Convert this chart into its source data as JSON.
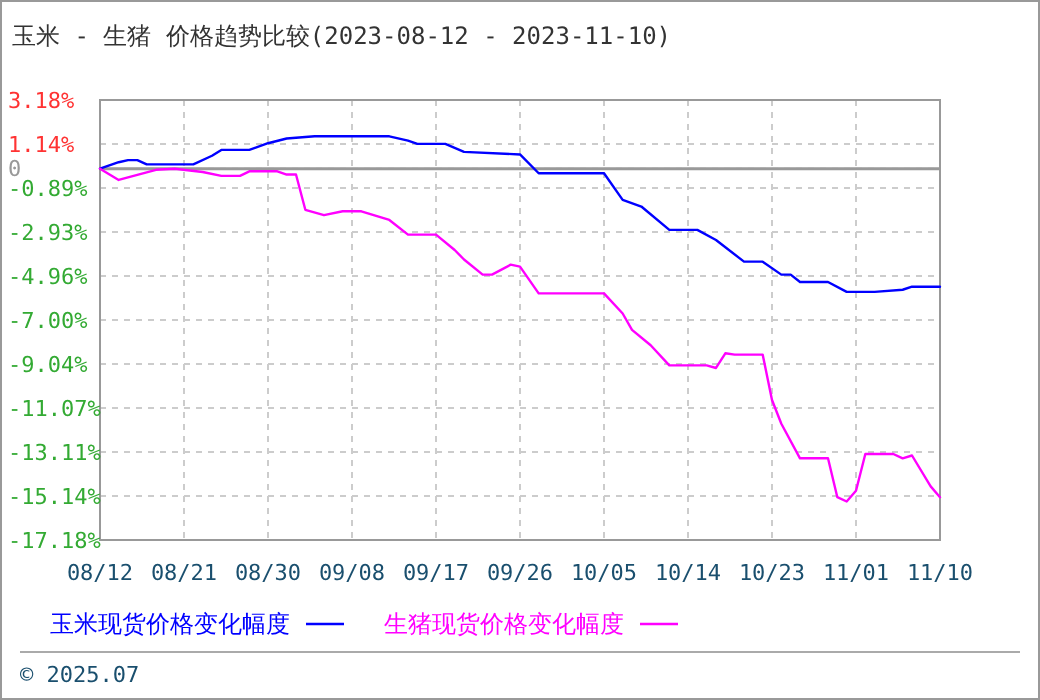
{
  "chart_data": {
    "type": "line",
    "title": "玉米 - 生猪  价格趋势比较(2023-08-12 - 2023-11-10)",
    "xlim": [
      "2023-08-12",
      "2023-11-10"
    ],
    "xticks": [
      {
        "value": "2023-08-12",
        "label": "08/12"
      },
      {
        "value": "2023-08-21",
        "label": "08/21"
      },
      {
        "value": "2023-08-30",
        "label": "08/30"
      },
      {
        "value": "2023-09-08",
        "label": "09/08"
      },
      {
        "value": "2023-09-17",
        "label": "09/17"
      },
      {
        "value": "2023-09-26",
        "label": "09/26"
      },
      {
        "value": "2023-10-05",
        "label": "10/05"
      },
      {
        "value": "2023-10-14",
        "label": "10/14"
      },
      {
        "value": "2023-10-23",
        "label": "10/23"
      },
      {
        "value": "2023-11-01",
        "label": "11/01"
      },
      {
        "value": "2023-11-10",
        "label": "11/10"
      }
    ],
    "ylim": [
      -17.18,
      3.18
    ],
    "yticks": [
      {
        "value": 3.18,
        "label": "3.18%"
      },
      {
        "value": 1.14,
        "label": "1.14%"
      },
      0,
      {
        "value": -0.89,
        "label": "-0.89%"
      },
      {
        "value": -2.93,
        "label": "-2.93%"
      },
      {
        "value": -4.96,
        "label": "-4.96%"
      },
      {
        "value": -7.0,
        "label": "-7.00%"
      },
      {
        "value": -9.04,
        "label": "-9.04%"
      },
      {
        "value": -11.07,
        "label": "-11.07%"
      },
      {
        "value": -13.11,
        "label": "-13.11%"
      },
      {
        "value": -15.14,
        "label": "-15.14%"
      },
      {
        "value": -17.18,
        "label": "-17.18%"
      }
    ],
    "grid": true,
    "legend": "bottom",
    "marker": "none",
    "line_style": "solid",
    "ref_lines": [
      {
        "axis": "y",
        "value": 0,
        "color": "#999999"
      }
    ],
    "annotations": [
      "© 2025.07"
    ],
    "series": [
      {
        "name": "玉米现货价格变化幅度",
        "color": "#0000ff",
        "x": [
          "2023-08-12",
          "2023-08-14",
          "2023-08-15",
          "2023-08-16",
          "2023-08-17",
          "2023-08-22",
          "2023-08-24",
          "2023-08-25",
          "2023-08-28",
          "2023-08-30",
          "2023-09-01",
          "2023-09-04",
          "2023-09-12",
          "2023-09-14",
          "2023-09-15",
          "2023-09-18",
          "2023-09-20",
          "2023-09-26",
          "2023-09-28",
          "2023-10-05",
          "2023-10-07",
          "2023-10-09",
          "2023-10-12",
          "2023-10-15",
          "2023-10-17",
          "2023-10-20",
          "2023-10-22",
          "2023-10-24",
          "2023-10-25",
          "2023-10-26",
          "2023-10-29",
          "2023-10-31",
          "2023-11-03",
          "2023-11-06",
          "2023-11-07",
          "2023-11-10"
        ],
        "values": [
          0,
          0.3,
          0.4,
          0.4,
          0.2,
          0.2,
          0.6,
          0.87,
          0.87,
          1.18,
          1.4,
          1.5,
          1.5,
          1.3,
          1.15,
          1.15,
          0.78,
          0.66,
          -0.21,
          -0.21,
          -1.44,
          -1.75,
          -2.83,
          -2.83,
          -3.3,
          -4.3,
          -4.3,
          -4.9,
          -4.9,
          -5.24,
          -5.24,
          -5.7,
          -5.7,
          -5.6,
          -5.46,
          -5.46
        ]
      },
      {
        "name": "生猪现货价格变化幅度",
        "color": "#ff00ff",
        "x": [
          "2023-08-12",
          "2023-08-14",
          "2023-08-18",
          "2023-08-20",
          "2023-08-23",
          "2023-08-25",
          "2023-08-27",
          "2023-08-28",
          "2023-08-31",
          "2023-09-01",
          "2023-09-02",
          "2023-09-03",
          "2023-09-05",
          "2023-09-07",
          "2023-09-09",
          "2023-09-12",
          "2023-09-14",
          "2023-09-17",
          "2023-09-19",
          "2023-09-20",
          "2023-09-22",
          "2023-09-23",
          "2023-09-25",
          "2023-09-26",
          "2023-09-28",
          "2023-10-05",
          "2023-10-07",
          "2023-10-08",
          "2023-10-10",
          "2023-10-12",
          "2023-10-16",
          "2023-10-17",
          "2023-10-18",
          "2023-10-19",
          "2023-10-22",
          "2023-10-23",
          "2023-10-24",
          "2023-10-26",
          "2023-10-29",
          "2023-10-30",
          "2023-10-31",
          "2023-11-01",
          "2023-11-02",
          "2023-11-05",
          "2023-11-06",
          "2023-11-07",
          "2023-11-09",
          "2023-11-10"
        ],
        "values": [
          0,
          -0.52,
          -0.05,
          0,
          -0.15,
          -0.33,
          -0.33,
          -0.12,
          -0.12,
          -0.27,
          -0.27,
          -1.9,
          -2.15,
          -1.97,
          -1.97,
          -2.37,
          -3.05,
          -3.05,
          -3.76,
          -4.2,
          -4.9,
          -4.9,
          -4.44,
          -4.53,
          -5.77,
          -5.77,
          -6.7,
          -7.46,
          -8.17,
          -9.1,
          -9.1,
          -9.22,
          -8.54,
          -8.6,
          -8.6,
          -10.7,
          -11.8,
          -13.4,
          -13.4,
          -15.2,
          -15.4,
          -14.9,
          -13.2,
          -13.2,
          -13.4,
          -13.27,
          -14.7,
          -15.2
        ]
      }
    ]
  }
}
